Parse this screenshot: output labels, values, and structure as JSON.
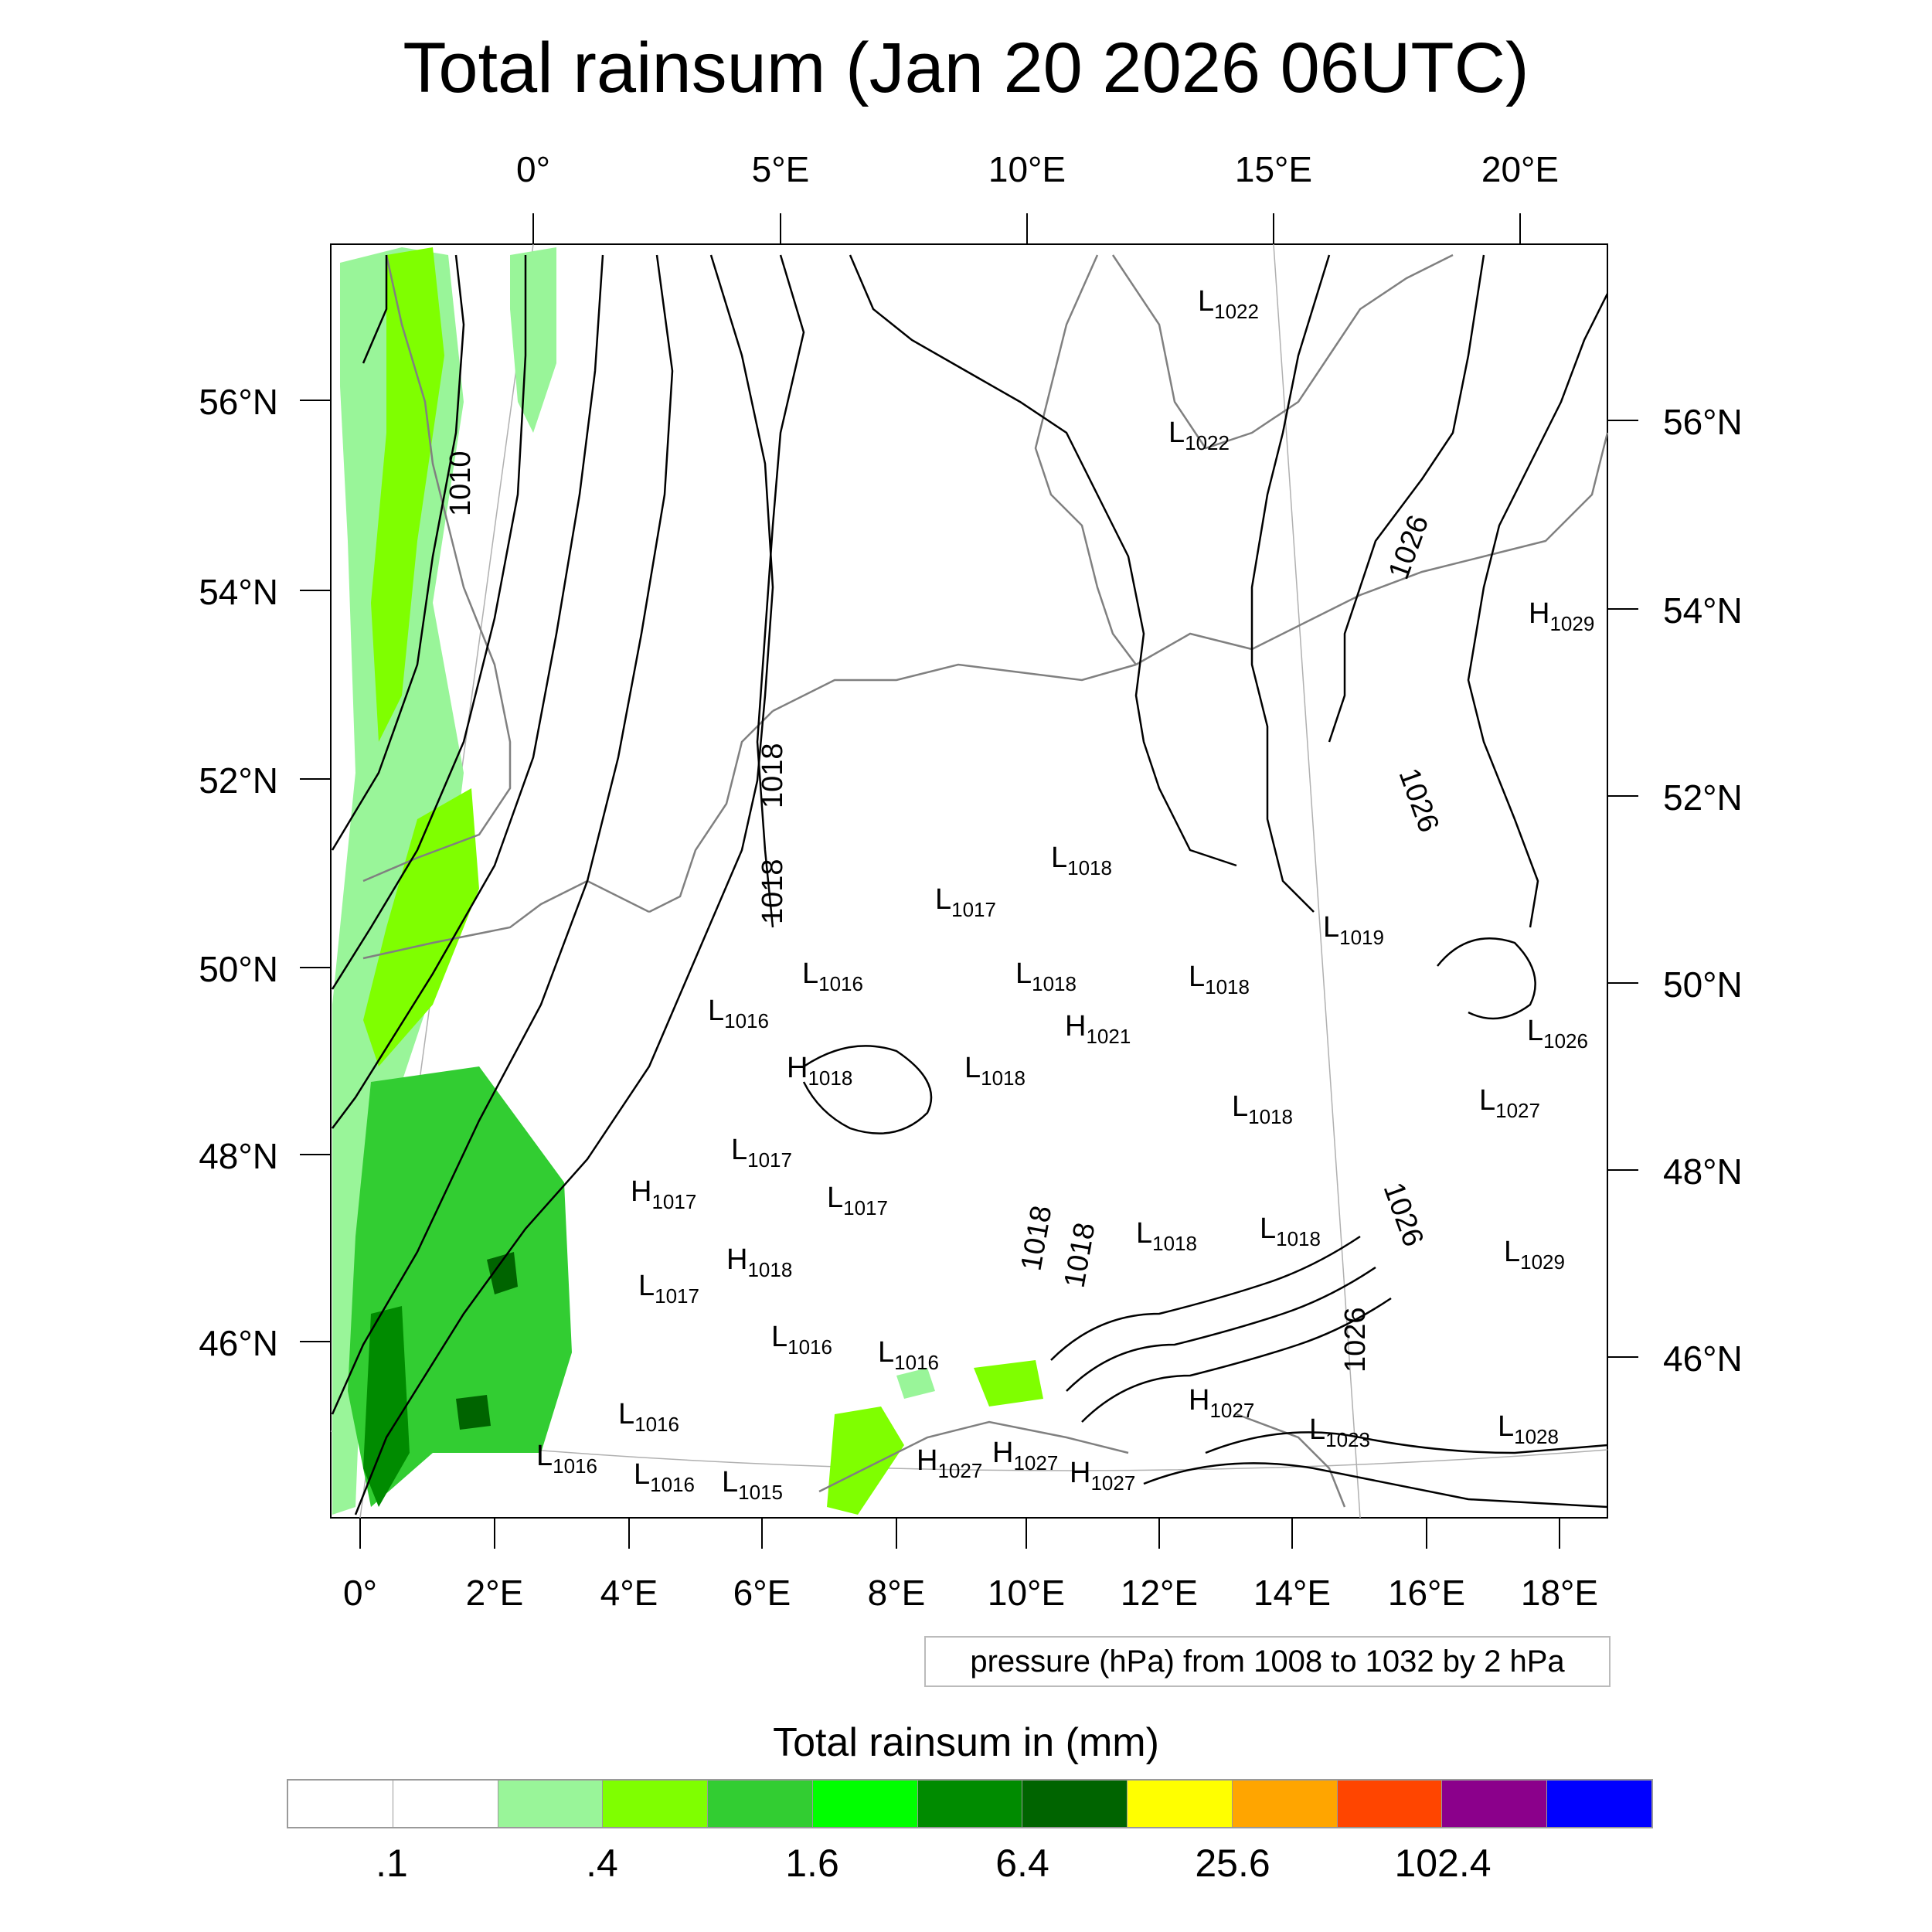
{
  "title": "Total rainsum (Jan 20 2026 06UTC)",
  "top_lon_ticks": [
    "0°",
    "5°E",
    "10°E",
    "15°E",
    "20°E"
  ],
  "bottom_lon_ticks": [
    "0°",
    "2°E",
    "4°E",
    "6°E",
    "8°E",
    "10°E",
    "12°E",
    "14°E",
    "16°E",
    "18°E"
  ],
  "left_lat_ticks": [
    "56°N",
    "54°N",
    "52°N",
    "50°N",
    "48°N",
    "46°N"
  ],
  "right_lat_ticks": [
    "56°N",
    "54°N",
    "52°N",
    "50°N",
    "48°N",
    "46°N"
  ],
  "pressure_note": "pressure (hPa) from 1008 to 1032 by 2 hPa",
  "colorbar": {
    "title": "Total rainsum in (mm)",
    "colors": [
      "#ffffff",
      "#ffffff",
      "#99f599",
      "#7fff00",
      "#32cd32",
      "#00ff00",
      "#008b00",
      "#006400",
      "#ffff00",
      "#ffa500",
      "#ff4500",
      "#8b008b",
      "#0000ff"
    ],
    "labels": [
      ".1",
      ".4",
      "1.6",
      "6.4",
      "25.6",
      "102.4"
    ]
  },
  "isobar_labels": [
    "1010",
    "1018",
    "1018",
    "1018",
    "1018",
    "1026",
    "1026",
    "1026",
    "1026"
  ],
  "pressure_systems": [
    {
      "type": "L",
      "value": "1022"
    },
    {
      "type": "L",
      "value": "1022"
    },
    {
      "type": "H",
      "value": "1029"
    },
    {
      "type": "L",
      "value": "1018"
    },
    {
      "type": "L",
      "value": "1017"
    },
    {
      "type": "L",
      "value": "1019"
    },
    {
      "type": "L",
      "value": "1016"
    },
    {
      "type": "L",
      "value": "1018"
    },
    {
      "type": "L",
      "value": "1018"
    },
    {
      "type": "L",
      "value": "1016"
    },
    {
      "type": "H",
      "value": "1021"
    },
    {
      "type": "L",
      "value": "1026"
    },
    {
      "type": "H",
      "value": "1018"
    },
    {
      "type": "L",
      "value": "1018"
    },
    {
      "type": "L",
      "value": "1027"
    },
    {
      "type": "L",
      "value": "1018"
    },
    {
      "type": "L",
      "value": "1017"
    },
    {
      "type": "H",
      "value": "1017"
    },
    {
      "type": "L",
      "value": "1017"
    },
    {
      "type": "L",
      "value": "1018"
    },
    {
      "type": "L",
      "value": "1018"
    },
    {
      "type": "H",
      "value": "1018"
    },
    {
      "type": "L",
      "value": "1029"
    },
    {
      "type": "L",
      "value": "1017"
    },
    {
      "type": "L",
      "value": "1016"
    },
    {
      "type": "L",
      "value": "1016"
    },
    {
      "type": "H",
      "value": "1027"
    },
    {
      "type": "L",
      "value": "1016"
    },
    {
      "type": "L",
      "value": "1023"
    },
    {
      "type": "L",
      "value": "1028"
    },
    {
      "type": "H",
      "value": "1027"
    },
    {
      "type": "H",
      "value": "1027"
    },
    {
      "type": "H",
      "value": "1027"
    },
    {
      "type": "L",
      "value": "1016"
    },
    {
      "type": "L",
      "value": "1015"
    },
    {
      "type": "L",
      "value": "1016"
    }
  ]
}
